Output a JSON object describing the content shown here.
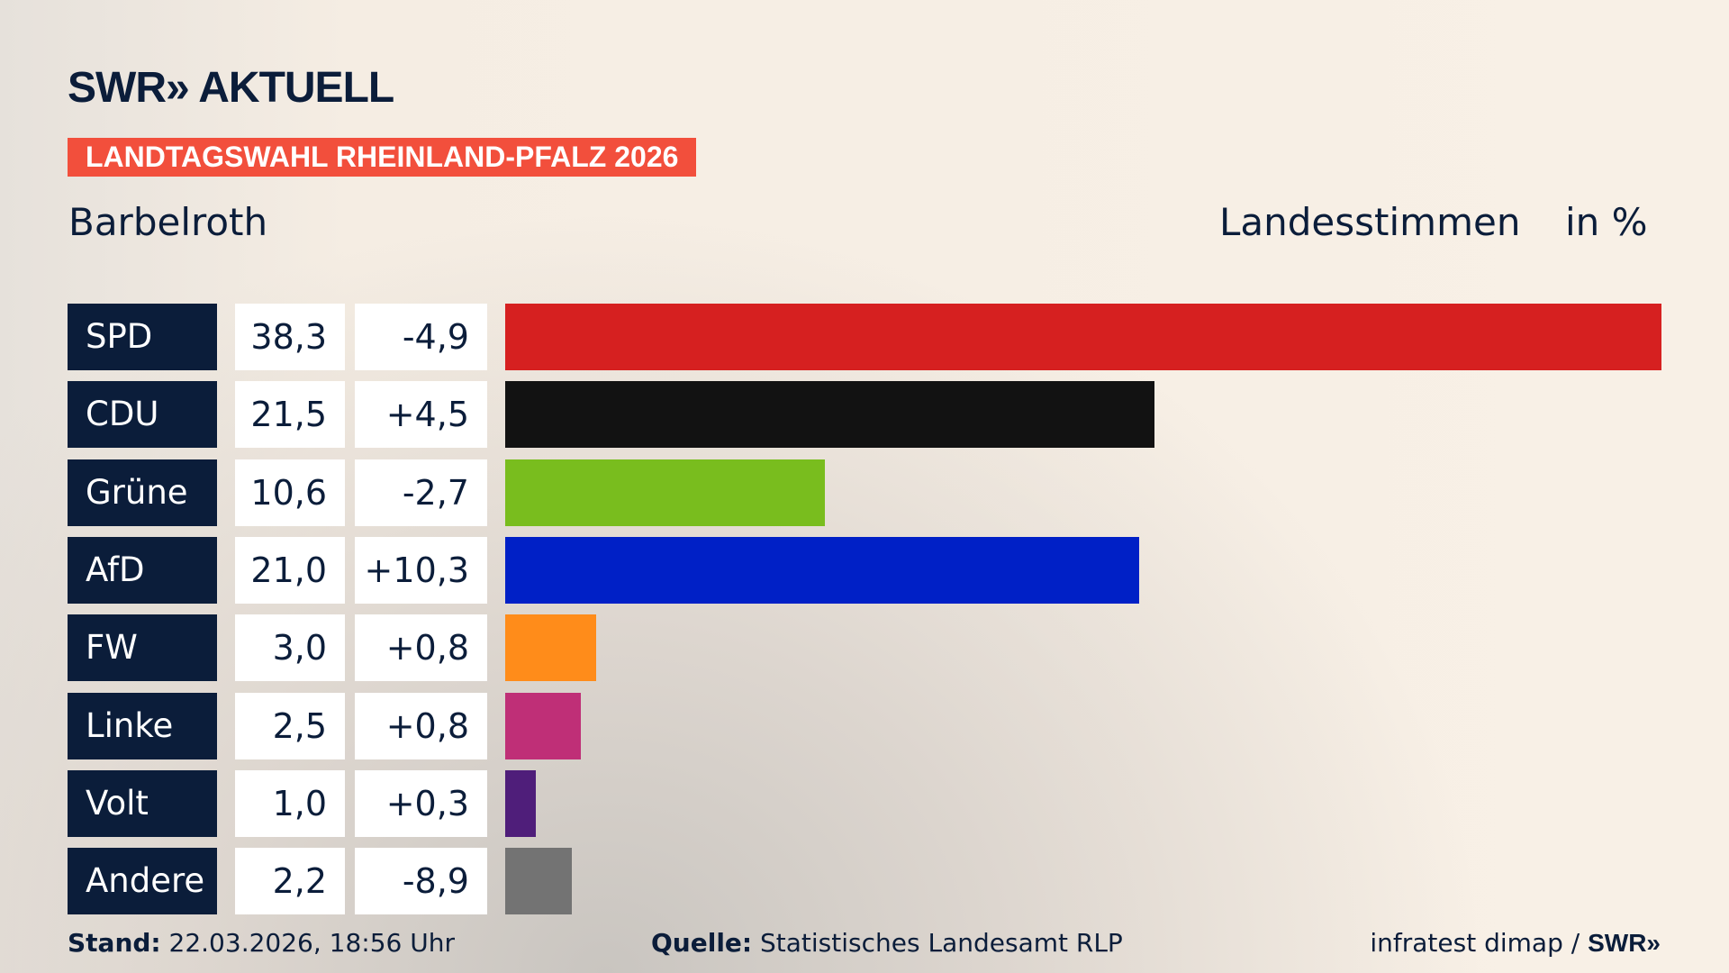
{
  "header": {
    "logo": "SWR» AKTUELL",
    "banner": "LANDTAGSWAHL RHEINLAND-PFALZ 2026",
    "location": "Barbelroth",
    "measure": "Landesstimmen",
    "unit": "in %"
  },
  "chart_data": {
    "type": "bar",
    "orientation": "horizontal",
    "title": "Landesstimmen",
    "ylabel": "in %",
    "categories": [
      "SPD",
      "CDU",
      "Grüne",
      "AfD",
      "FW",
      "Linke",
      "Volt",
      "Andere"
    ],
    "values": [
      38.3,
      21.5,
      10.6,
      21.0,
      3.0,
      2.5,
      1.0,
      2.2
    ],
    "value_labels": [
      "38,3",
      "21,5",
      "10,6",
      "21,0",
      "3,0",
      "2,5",
      "1,0",
      "2,2"
    ],
    "diff_labels": [
      "-4,9",
      "+4,5",
      "-2,7",
      "+10,3",
      "+0,8",
      "+0,8",
      "+0,3",
      "-8,9"
    ],
    "colors": [
      "#d62020",
      "#121212",
      "#79bd1e",
      "#0020c6",
      "#ff8c1a",
      "#bf2f77",
      "#4f1e7a",
      "#737373"
    ],
    "xlim": [
      0,
      38.3
    ],
    "grid": false
  },
  "footer": {
    "stand_label": "Stand:",
    "stand": "22.03.2026, 18:56 Uhr",
    "source_label": "Quelle:",
    "source": "Statistisches Landesamt RLP",
    "credit": "infratest dimap / ",
    "credit_logo": "SWR»"
  }
}
